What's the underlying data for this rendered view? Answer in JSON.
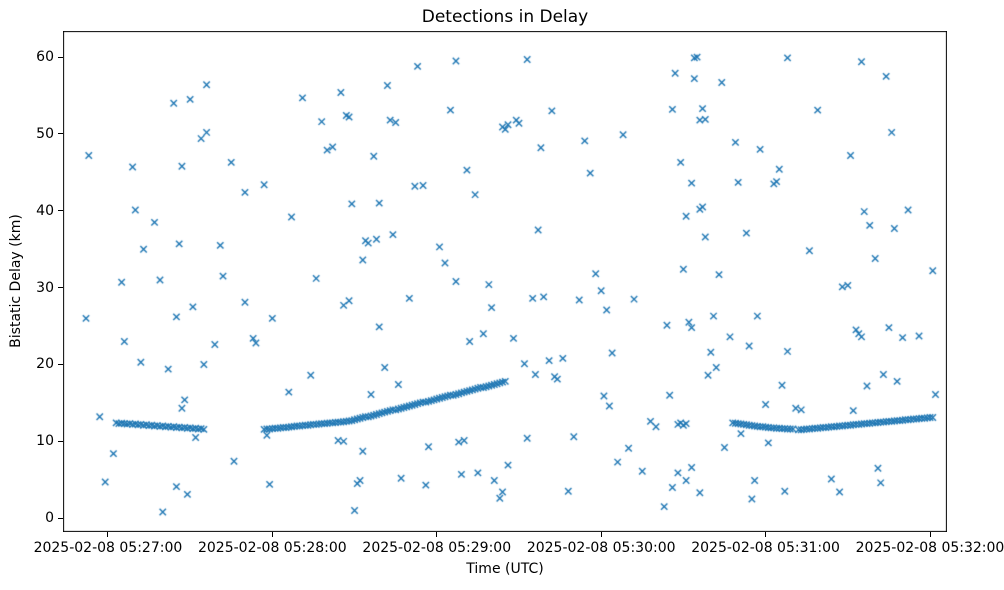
{
  "chart_data": {
    "type": "scatter",
    "title": "Detections in Delay",
    "xlabel": "Time (UTC)",
    "ylabel": "Bistatic Delay (km)",
    "marker": "x",
    "marker_color": "#1f77b4",
    "background_color": "#ffffff",
    "frame_color": "#000000",
    "grid": false,
    "legend": false,
    "x_unit": "seconds after 2025-02-08 05:27:00 UTC",
    "x_axis": {
      "min": -16.4,
      "max": 306.2,
      "ticks": [
        {
          "value": 0,
          "label": "2025-02-08 05:27:00"
        },
        {
          "value": 60,
          "label": "2025-02-08 05:28:00"
        },
        {
          "value": 120,
          "label": "2025-02-08 05:29:00"
        },
        {
          "value": 180,
          "label": "2025-02-08 05:30:00"
        },
        {
          "value": 240,
          "label": "2025-02-08 05:31:00"
        },
        {
          "value": 300,
          "label": "2025-02-08 05:32:00"
        }
      ]
    },
    "y_axis": {
      "min": -1.8,
      "max": 63.4,
      "ticks": [
        0,
        10,
        20,
        30,
        40,
        50,
        60
      ]
    },
    "points": [
      [
        3,
        12.4
      ],
      [
        4,
        12.3
      ],
      [
        5,
        12.35
      ],
      [
        6,
        12.3
      ],
      [
        7,
        12.25
      ],
      [
        8,
        12.3
      ],
      [
        9,
        12.2
      ],
      [
        10,
        12.25
      ],
      [
        11,
        12.15
      ],
      [
        12,
        12.2
      ],
      [
        13,
        12.1
      ],
      [
        14,
        12.15
      ],
      [
        15,
        12.05
      ],
      [
        16,
        12.1
      ],
      [
        17,
        12.0
      ],
      [
        18,
        12.05
      ],
      [
        19,
        11.95
      ],
      [
        20,
        12.0
      ],
      [
        21,
        11.9
      ],
      [
        22,
        11.95
      ],
      [
        23,
        11.85
      ],
      [
        24,
        11.9
      ],
      [
        25,
        11.8
      ],
      [
        26,
        11.85
      ],
      [
        27,
        11.75
      ],
      [
        28,
        11.8
      ],
      [
        29,
        11.7
      ],
      [
        30,
        11.75
      ],
      [
        31,
        11.65
      ],
      [
        32,
        11.7
      ],
      [
        33,
        11.6
      ],
      [
        34,
        11.65
      ],
      [
        35,
        11.55
      ],
      [
        57,
        11.55
      ],
      [
        58,
        11.6
      ],
      [
        59,
        11.6
      ],
      [
        60,
        11.65
      ],
      [
        61,
        11.7
      ],
      [
        62,
        11.7
      ],
      [
        63,
        11.75
      ],
      [
        64,
        11.8
      ],
      [
        65,
        11.8
      ],
      [
        66,
        11.85
      ],
      [
        67,
        11.9
      ],
      [
        68,
        11.95
      ],
      [
        69,
        12.0
      ],
      [
        70,
        12.0
      ],
      [
        71,
        12.05
      ],
      [
        72,
        12.1
      ],
      [
        73,
        12.1
      ],
      [
        74,
        12.15
      ],
      [
        75,
        12.2
      ],
      [
        76,
        12.2
      ],
      [
        77,
        12.25
      ],
      [
        78,
        12.3
      ],
      [
        79,
        12.3
      ],
      [
        80,
        12.35
      ],
      [
        81,
        12.4
      ],
      [
        82,
        12.4
      ],
      [
        83,
        12.45
      ],
      [
        84,
        12.5
      ],
      [
        85,
        12.5
      ],
      [
        86,
        12.55
      ],
      [
        87,
        12.6
      ],
      [
        88,
        12.65
      ],
      [
        89,
        12.7
      ],
      [
        90,
        12.8
      ],
      [
        91,
        12.9
      ],
      [
        92,
        13.0
      ],
      [
        93,
        13.1
      ],
      [
        94,
        13.2
      ],
      [
        95,
        13.2
      ],
      [
        96,
        13.3
      ],
      [
        97,
        13.4
      ],
      [
        98,
        13.5
      ],
      [
        99,
        13.6
      ],
      [
        100,
        13.7
      ],
      [
        101,
        13.8
      ],
      [
        102,
        13.9
      ],
      [
        103,
        14.0
      ],
      [
        104,
        14.1
      ],
      [
        105,
        14.1
      ],
      [
        106,
        14.2
      ],
      [
        107,
        14.3
      ],
      [
        108,
        14.4
      ],
      [
        109,
        14.5
      ],
      [
        110,
        14.6
      ],
      [
        111,
        14.7
      ],
      [
        112,
        14.8
      ],
      [
        113,
        14.9
      ],
      [
        114,
        15.0
      ],
      [
        115,
        15.1
      ],
      [
        116,
        15.1
      ],
      [
        117,
        15.2
      ],
      [
        118,
        15.3
      ],
      [
        119,
        15.4
      ],
      [
        120,
        15.5
      ],
      [
        121,
        15.6
      ],
      [
        122,
        15.7
      ],
      [
        123,
        15.8
      ],
      [
        124,
        15.9
      ],
      [
        125,
        16.0
      ],
      [
        126,
        16.0
      ],
      [
        127,
        16.1
      ],
      [
        128,
        16.2
      ],
      [
        129,
        16.3
      ],
      [
        130,
        16.4
      ],
      [
        131,
        16.5
      ],
      [
        132,
        16.6
      ],
      [
        133,
        16.7
      ],
      [
        134,
        16.8
      ],
      [
        135,
        16.9
      ],
      [
        136,
        17.0
      ],
      [
        137,
        17.0
      ],
      [
        138,
        17.1
      ],
      [
        139,
        17.2
      ],
      [
        140,
        17.3
      ],
      [
        141,
        17.4
      ],
      [
        142,
        17.5
      ],
      [
        143,
        17.6
      ],
      [
        144,
        17.7
      ],
      [
        145,
        17.8
      ],
      [
        228,
        12.4
      ],
      [
        229,
        12.35
      ],
      [
        230,
        12.3
      ],
      [
        231,
        12.25
      ],
      [
        232,
        12.2
      ],
      [
        233,
        12.15
      ],
      [
        234,
        12.1
      ],
      [
        235,
        12.05
      ],
      [
        236,
        12.0
      ],
      [
        237,
        11.95
      ],
      [
        238,
        11.9
      ],
      [
        239,
        11.9
      ],
      [
        240,
        11.85
      ],
      [
        241,
        11.8
      ],
      [
        242,
        11.75
      ],
      [
        243,
        11.75
      ],
      [
        244,
        11.7
      ],
      [
        245,
        11.7
      ],
      [
        246,
        11.65
      ],
      [
        247,
        11.65
      ],
      [
        248,
        11.6
      ],
      [
        249,
        11.6
      ],
      [
        250,
        11.6
      ],
      [
        252,
        11.5
      ],
      [
        253,
        11.5
      ],
      [
        254,
        11.55
      ],
      [
        255,
        11.6
      ],
      [
        256,
        11.6
      ],
      [
        257,
        11.65
      ],
      [
        258,
        11.7
      ],
      [
        259,
        11.7
      ],
      [
        260,
        11.75
      ],
      [
        261,
        11.8
      ],
      [
        262,
        11.8
      ],
      [
        263,
        11.85
      ],
      [
        264,
        11.9
      ],
      [
        265,
        11.9
      ],
      [
        266,
        11.95
      ],
      [
        267,
        12.0
      ],
      [
        268,
        12.0
      ],
      [
        269,
        12.05
      ],
      [
        270,
        12.1
      ],
      [
        271,
        12.1
      ],
      [
        272,
        12.15
      ],
      [
        273,
        12.2
      ],
      [
        274,
        12.2
      ],
      [
        275,
        12.25
      ],
      [
        276,
        12.3
      ],
      [
        277,
        12.3
      ],
      [
        278,
        12.35
      ],
      [
        279,
        12.4
      ],
      [
        280,
        12.4
      ],
      [
        281,
        12.45
      ],
      [
        282,
        12.5
      ],
      [
        283,
        12.5
      ],
      [
        284,
        12.55
      ],
      [
        285,
        12.6
      ],
      [
        286,
        12.6
      ],
      [
        287,
        12.65
      ],
      [
        288,
        12.7
      ],
      [
        289,
        12.7
      ],
      [
        290,
        12.75
      ],
      [
        291,
        12.8
      ],
      [
        292,
        12.8
      ],
      [
        293,
        12.85
      ],
      [
        294,
        12.9
      ],
      [
        295,
        12.9
      ],
      [
        296,
        12.95
      ],
      [
        297,
        13.0
      ],
      [
        298,
        13.0
      ],
      [
        299,
        13.05
      ],
      [
        300,
        13.1
      ],
      [
        301,
        13.1
      ],
      [
        -8,
        26.0
      ],
      [
        -7,
        47.2
      ],
      [
        -3,
        13.2
      ],
      [
        -1,
        4.7
      ],
      [
        2,
        8.4
      ],
      [
        5,
        30.7
      ],
      [
        6,
        23.0
      ],
      [
        9,
        45.7
      ],
      [
        10,
        40.1
      ],
      [
        12,
        20.3
      ],
      [
        13,
        35.0
      ],
      [
        17,
        38.5
      ],
      [
        19,
        31.0
      ],
      [
        20,
        0.8
      ],
      [
        22,
        19.4
      ],
      [
        24,
        54.0
      ],
      [
        25,
        26.2
      ],
      [
        25,
        4.1
      ],
      [
        26,
        35.7
      ],
      [
        27,
        45.8
      ],
      [
        27,
        14.3
      ],
      [
        28,
        15.4
      ],
      [
        29,
        3.1
      ],
      [
        30,
        54.5
      ],
      [
        31,
        27.5
      ],
      [
        32,
        10.5
      ],
      [
        34,
        49.4
      ],
      [
        35,
        20.0
      ],
      [
        36,
        56.4
      ],
      [
        36,
        50.2
      ],
      [
        39,
        22.6
      ],
      [
        41,
        35.5
      ],
      [
        42,
        31.5
      ],
      [
        45,
        46.3
      ],
      [
        46,
        7.4
      ],
      [
        50,
        42.4
      ],
      [
        50,
        28.1
      ],
      [
        53,
        23.4
      ],
      [
        54,
        22.8
      ],
      [
        57,
        43.4
      ],
      [
        58,
        10.8
      ],
      [
        59,
        4.4
      ],
      [
        60,
        26.0
      ],
      [
        66,
        16.4
      ],
      [
        67,
        39.2
      ],
      [
        71,
        54.7
      ],
      [
        74,
        18.6
      ],
      [
        76,
        31.2
      ],
      [
        78,
        51.6
      ],
      [
        80,
        47.9
      ],
      [
        82,
        48.3
      ],
      [
        84,
        10.1
      ],
      [
        85,
        55.4
      ],
      [
        86,
        10.0
      ],
      [
        86,
        27.7
      ],
      [
        87,
        52.4
      ],
      [
        88,
        52.2
      ],
      [
        88,
        28.3
      ],
      [
        89,
        40.9
      ],
      [
        90,
        1.0
      ],
      [
        91,
        4.5
      ],
      [
        92,
        4.9
      ],
      [
        93,
        8.7
      ],
      [
        93,
        33.6
      ],
      [
        94,
        36.1
      ],
      [
        95,
        35.8
      ],
      [
        96,
        16.1
      ],
      [
        97,
        47.1
      ],
      [
        98,
        36.3
      ],
      [
        99,
        41.0
      ],
      [
        99,
        24.9
      ],
      [
        101,
        19.6
      ],
      [
        102,
        56.3
      ],
      [
        103,
        51.8
      ],
      [
        104,
        36.9
      ],
      [
        105,
        51.5
      ],
      [
        106,
        17.4
      ],
      [
        107,
        5.2
      ],
      [
        110,
        28.6
      ],
      [
        112,
        43.2
      ],
      [
        113,
        58.8
      ],
      [
        115,
        43.3
      ],
      [
        116,
        4.3
      ],
      [
        117,
        9.3
      ],
      [
        121,
        35.3
      ],
      [
        123,
        33.2
      ],
      [
        125,
        53.1
      ],
      [
        127,
        30.8
      ],
      [
        127,
        59.5
      ],
      [
        128,
        9.9
      ],
      [
        129,
        5.7
      ],
      [
        130,
        10.1
      ],
      [
        131,
        45.3
      ],
      [
        132,
        23.0
      ],
      [
        134,
        42.1
      ],
      [
        135,
        5.9
      ],
      [
        137,
        24.0
      ],
      [
        139,
        30.4
      ],
      [
        140,
        27.4
      ],
      [
        141,
        4.9
      ],
      [
        143,
        2.6
      ],
      [
        144,
        3.4
      ],
      [
        144,
        50.9
      ],
      [
        145,
        50.6
      ],
      [
        146,
        6.9
      ],
      [
        146,
        51.2
      ],
      [
        148,
        23.4
      ],
      [
        149,
        51.8
      ],
      [
        150,
        51.4
      ],
      [
        152,
        20.1
      ],
      [
        153,
        10.4
      ],
      [
        153,
        59.7
      ],
      [
        155,
        28.6
      ],
      [
        157,
        37.5
      ],
      [
        159,
        28.8
      ],
      [
        161,
        20.5
      ],
      [
        163,
        18.4
      ],
      [
        156,
        18.7
      ],
      [
        158,
        48.2
      ],
      [
        162,
        53.0
      ],
      [
        164,
        18.1
      ],
      [
        166,
        20.8
      ],
      [
        168,
        3.5
      ],
      [
        170,
        10.6
      ],
      [
        172,
        28.4
      ],
      [
        174,
        49.1
      ],
      [
        176,
        44.9
      ],
      [
        178,
        31.8
      ],
      [
        180,
        29.6
      ],
      [
        181,
        15.9
      ],
      [
        182,
        27.1
      ],
      [
        183,
        14.6
      ],
      [
        184,
        21.5
      ],
      [
        186,
        7.3
      ],
      [
        188,
        49.9
      ],
      [
        190,
        9.1
      ],
      [
        192,
        28.5
      ],
      [
        195,
        6.1
      ],
      [
        198,
        12.6
      ],
      [
        200,
        11.9
      ],
      [
        203,
        1.5
      ],
      [
        204,
        25.1
      ],
      [
        205,
        16.0
      ],
      [
        206,
        53.2
      ],
      [
        206,
        4.0
      ],
      [
        207,
        57.9
      ],
      [
        208,
        12.2
      ],
      [
        208,
        5.9
      ],
      [
        209,
        12.4
      ],
      [
        209,
        46.3
      ],
      [
        210,
        12.1
      ],
      [
        210,
        32.4
      ],
      [
        211,
        12.3
      ],
      [
        211,
        39.3
      ],
      [
        211,
        4.9
      ],
      [
        212,
        25.5
      ],
      [
        213,
        24.8
      ],
      [
        213,
        43.6
      ],
      [
        213,
        6.6
      ],
      [
        214,
        59.9
      ],
      [
        214,
        57.2
      ],
      [
        215,
        60.0
      ],
      [
        216,
        51.8
      ],
      [
        216,
        40.2
      ],
      [
        216,
        3.3
      ],
      [
        217,
        53.3
      ],
      [
        217,
        40.5
      ],
      [
        218,
        36.6
      ],
      [
        218,
        51.9
      ],
      [
        219,
        18.6
      ],
      [
        220,
        21.6
      ],
      [
        221,
        26.3
      ],
      [
        222,
        19.6
      ],
      [
        223,
        31.7
      ],
      [
        224,
        56.7
      ],
      [
        225,
        9.2
      ],
      [
        227,
        23.6
      ],
      [
        229,
        48.9
      ],
      [
        230,
        43.7
      ],
      [
        231,
        11.0
      ],
      [
        233,
        37.1
      ],
      [
        234,
        22.4
      ],
      [
        235,
        2.5
      ],
      [
        236,
        4.9
      ],
      [
        237,
        26.3
      ],
      [
        238,
        48.0
      ],
      [
        240,
        14.8
      ],
      [
        241,
        9.8
      ],
      [
        243,
        43.5
      ],
      [
        244,
        43.8
      ],
      [
        245,
        45.4
      ],
      [
        246,
        17.3
      ],
      [
        247,
        3.5
      ],
      [
        248,
        21.7
      ],
      [
        248,
        59.9
      ],
      [
        251,
        14.3
      ],
      [
        253,
        14.1
      ],
      [
        256,
        34.8
      ],
      [
        259,
        53.1
      ],
      [
        264,
        5.1
      ],
      [
        267,
        3.4
      ],
      [
        268,
        30.1
      ],
      [
        270,
        30.3
      ],
      [
        271,
        47.2
      ],
      [
        272,
        14.0
      ],
      [
        273,
        24.5
      ],
      [
        274,
        24.0
      ],
      [
        275,
        23.6
      ],
      [
        275,
        59.4
      ],
      [
        276,
        39.9
      ],
      [
        277,
        17.2
      ],
      [
        278,
        38.1
      ],
      [
        280,
        33.8
      ],
      [
        281,
        6.5
      ],
      [
        282,
        4.6
      ],
      [
        283,
        18.7
      ],
      [
        284,
        57.5
      ],
      [
        285,
        24.8
      ],
      [
        286,
        50.2
      ],
      [
        287,
        37.7
      ],
      [
        288,
        17.8
      ],
      [
        290,
        23.5
      ],
      [
        292,
        40.1
      ],
      [
        296,
        23.7
      ],
      [
        301,
        32.2
      ],
      [
        302,
        16.1
      ]
    ]
  }
}
